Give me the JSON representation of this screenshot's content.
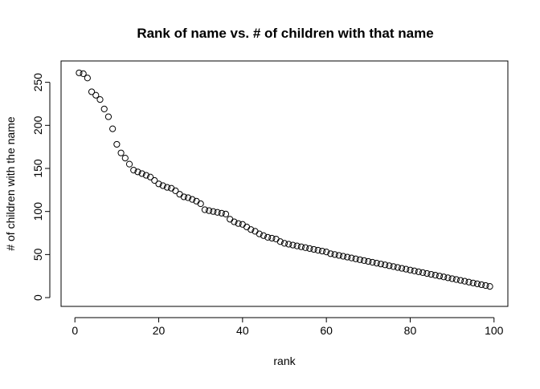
{
  "chart_data": {
    "type": "scatter",
    "title": "Rank of name vs. # of children with that name",
    "xlabel": "rank",
    "ylabel": "# of children with the name",
    "xlim": [
      -3.3,
      103.3
    ],
    "ylim": [
      -10.2,
      274.8
    ],
    "xticks": [
      0,
      20,
      40,
      60,
      80,
      100
    ],
    "yticks": [
      0,
      50,
      100,
      150,
      200,
      250
    ],
    "grid": false,
    "marker": "open-circle",
    "x": [
      1,
      2,
      3,
      4,
      5,
      6,
      7,
      8,
      9,
      10,
      11,
      12,
      13,
      14,
      15,
      16,
      17,
      18,
      19,
      20,
      21,
      22,
      23,
      24,
      25,
      26,
      27,
      28,
      29,
      30,
      31,
      32,
      33,
      34,
      35,
      36,
      37,
      38,
      39,
      40,
      41,
      42,
      43,
      44,
      45,
      46,
      47,
      48,
      49,
      50,
      51,
      52,
      53,
      54,
      55,
      56,
      57,
      58,
      59,
      60,
      61,
      62,
      63,
      64,
      65,
      66,
      67,
      68,
      69,
      70,
      71,
      72,
      73,
      74,
      75,
      76,
      77,
      78,
      79,
      80,
      81,
      82,
      83,
      84,
      85,
      86,
      87,
      88,
      89,
      90,
      91,
      92,
      93,
      94,
      95,
      96,
      97,
      98,
      99
    ],
    "y": [
      261,
      260,
      255,
      239,
      235,
      230,
      219,
      210,
      196,
      178,
      168,
      162,
      155,
      148,
      146,
      144,
      142,
      140,
      136,
      132,
      130,
      128,
      127,
      124,
      120,
      117,
      116,
      114,
      112,
      109,
      102,
      101,
      100,
      99,
      98,
      97,
      91,
      88,
      86,
      85,
      82,
      79,
      77,
      74,
      72,
      70,
      69,
      68,
      65,
      63,
      62,
      61,
      60,
      59,
      58,
      57,
      56,
      55,
      54,
      53,
      51,
      50,
      49,
      48,
      47,
      46,
      45,
      44,
      43,
      42,
      41,
      40,
      39,
      38,
      37,
      36,
      35,
      34,
      33,
      32,
      31,
      30,
      29,
      28,
      27,
      26,
      25,
      24,
      23,
      22,
      21,
      20,
      19,
      18,
      17,
      16,
      15,
      14,
      13
    ]
  }
}
